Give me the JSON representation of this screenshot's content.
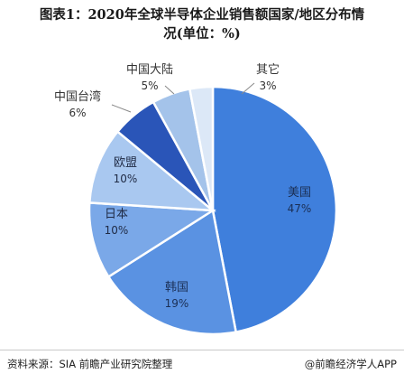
{
  "title_line1": "图表1：2020年全球半导体企业销售额国家/地区分布情",
  "title_line2": "况(单位：%)",
  "chart_data": {
    "type": "pie",
    "title": "图表1：2020年全球半导体企业销售额国家/地区分布情况(单位：%)",
    "unit": "%",
    "slices": [
      {
        "label": "美国",
        "value": 47,
        "color": "#3f7fdc"
      },
      {
        "label": "韩国",
        "value": 19,
        "color": "#5a92e2"
      },
      {
        "label": "日本",
        "value": 10,
        "color": "#7aa8e8"
      },
      {
        "label": "欧盟",
        "value": 10,
        "color": "#a9c8f0"
      },
      {
        "label": "中国台湾",
        "value": 6,
        "color": "#2a55b8"
      },
      {
        "label": "中国大陆",
        "value": 5,
        "color": "#a4c3ea"
      },
      {
        "label": "其它",
        "value": 3,
        "color": "#dce8f7"
      }
    ],
    "start_angle_deg": 0,
    "direction": "clockwise"
  },
  "footer": {
    "source": "资料来源：SIA 前瞻产业研究院整理",
    "credit": "@前瞻经济学人APP"
  }
}
